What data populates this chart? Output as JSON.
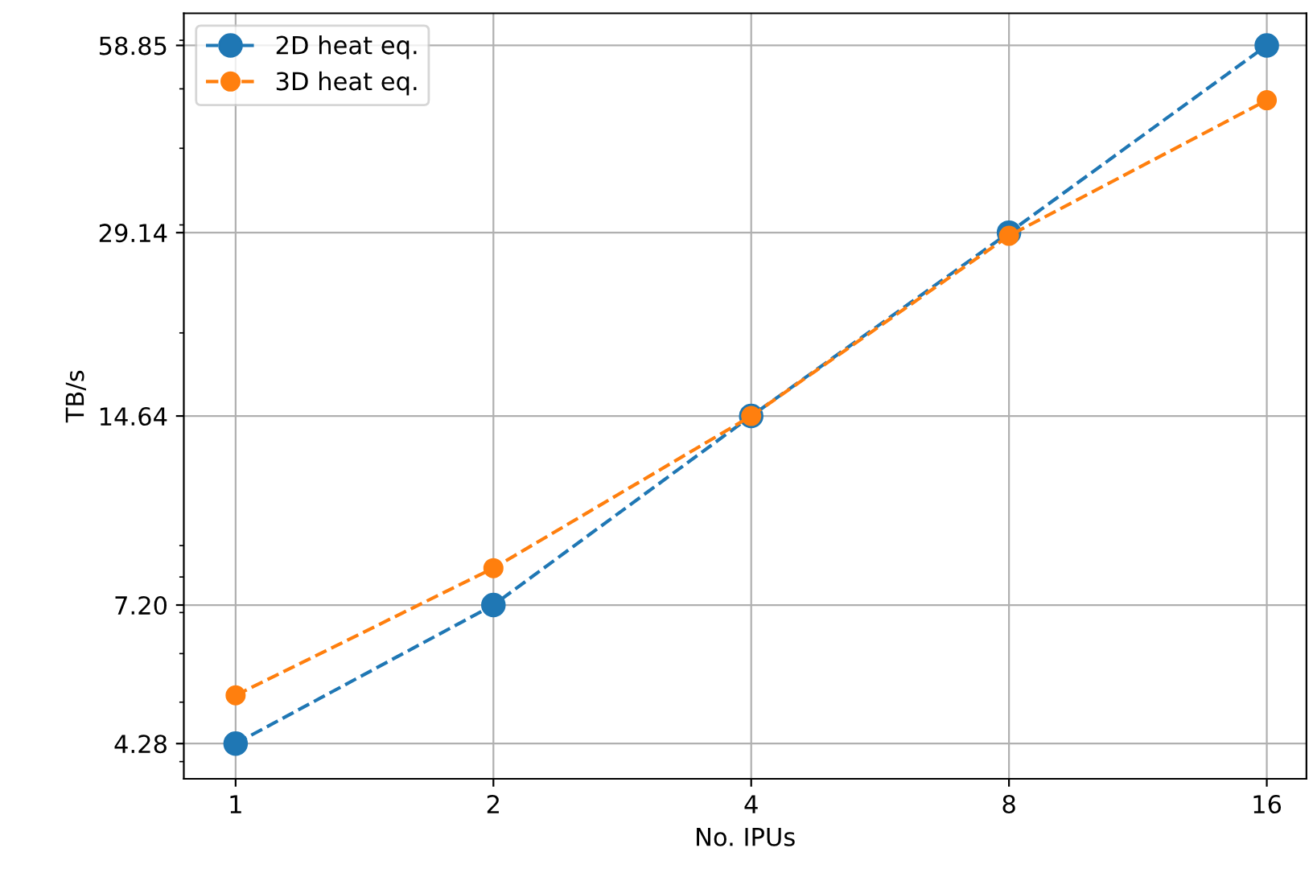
{
  "chart_data": {
    "type": "line",
    "xlabel": "No. IPUs",
    "ylabel": "TB/s",
    "log": "xy",
    "x": [
      1,
      2,
      4,
      8,
      16
    ],
    "series": [
      {
        "name": "2D heat eq.",
        "color": "#1f77b4",
        "values": [
          4.28,
          7.2,
          14.64,
          29.14,
          58.85
        ]
      },
      {
        "name": "3D heat eq.",
        "color": "#ff7f0e",
        "values": [
          5.13,
          8.27,
          14.64,
          28.8,
          47.9
        ]
      }
    ],
    "xlim": [
      0.87,
      17.8
    ],
    "ylim": [
      3.75,
      66.4
    ],
    "xticks": [
      1,
      2,
      4,
      8,
      16
    ],
    "yticks": [
      4.28,
      {
        "value": 7.2,
        "label": "7.20"
      },
      14.64,
      29.14,
      58.85
    ],
    "grid": true,
    "legend": "top left",
    "marker": "circle",
    "line_style": "dashed"
  }
}
